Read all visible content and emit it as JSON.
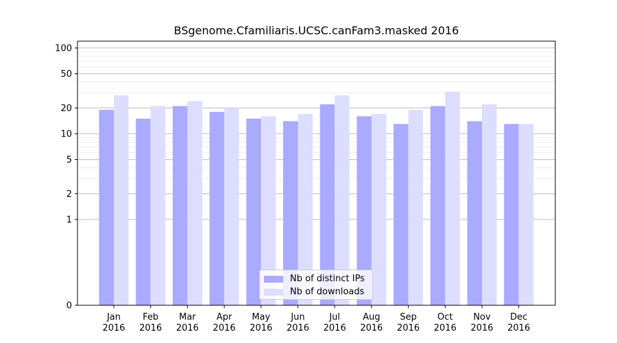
{
  "chart_data": {
    "type": "bar",
    "title": "BSgenome.Cfamiliaris.UCSC.canFam3.masked 2016",
    "xlabel": "",
    "ylabel": "",
    "yscale": "symlog",
    "ylim": [
      0,
      120
    ],
    "yticks": [
      0,
      1,
      2,
      5,
      10,
      20,
      50,
      100
    ],
    "categories": [
      "Jan\n2016",
      "Feb\n2016",
      "Mar\n2016",
      "Apr\n2016",
      "May\n2016",
      "Jun\n2016",
      "Jul\n2016",
      "Aug\n2016",
      "Sep\n2016",
      "Oct\n2016",
      "Nov\n2016",
      "Dec\n2016"
    ],
    "category_lines": [
      [
        "Jan",
        "2016"
      ],
      [
        "Feb",
        "2016"
      ],
      [
        "Mar",
        "2016"
      ],
      [
        "Apr",
        "2016"
      ],
      [
        "May",
        "2016"
      ],
      [
        "Jun",
        "2016"
      ],
      [
        "Jul",
        "2016"
      ],
      [
        "Aug",
        "2016"
      ],
      [
        "Sep",
        "2016"
      ],
      [
        "Oct",
        "2016"
      ],
      [
        "Nov",
        "2016"
      ],
      [
        "Dec",
        "2016"
      ]
    ],
    "series": [
      {
        "name": "Nb of distinct IPs",
        "color": "#aaaaff",
        "values": [
          19,
          15,
          21,
          18,
          15,
          14,
          22,
          16,
          13,
          21,
          14,
          13
        ]
      },
      {
        "name": "Nb of downloads",
        "color": "#ddddff",
        "values": [
          28,
          21,
          24,
          20,
          16,
          17,
          28,
          17,
          19,
          31,
          22,
          13
        ]
      }
    ],
    "grid": true,
    "legend_position": "bottom-center"
  }
}
